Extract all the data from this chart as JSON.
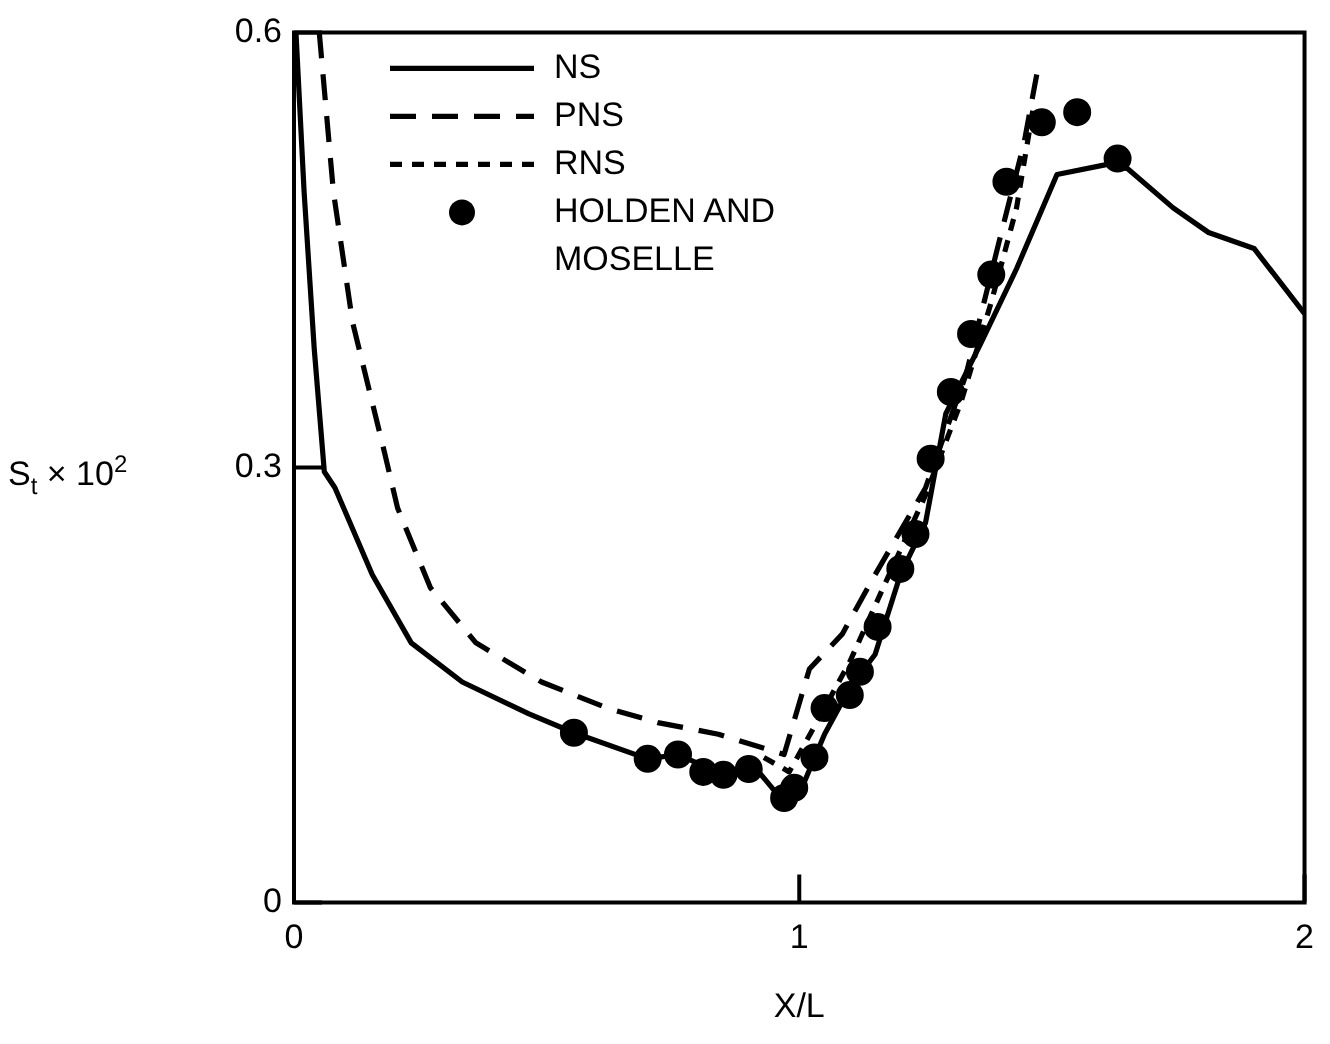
{
  "chart_data": {
    "type": "line",
    "xlabel": "X/L",
    "ylabel": "S$_{t}$ × 10$^{2}$",
    "xlim": [
      0,
      2
    ],
    "ylim": [
      0,
      0.6
    ],
    "xticks": [
      0,
      1,
      2
    ],
    "yticks": [
      0,
      0.3,
      0.6
    ],
    "grid": false,
    "legend": "top",
    "series": [
      {
        "name": "NS",
        "color": "#000000",
        "type": "line",
        "line_style": "solid",
        "marker": "none",
        "x": [
          0.004,
          0.02,
          0.04,
          0.06,
          0.081,
          0.155,
          0.232,
          0.333,
          0.465,
          0.554,
          0.7,
          0.76,
          0.85,
          0.915,
          0.97,
          1.01,
          1.05,
          1.1,
          1.15,
          1.2,
          1.25,
          1.29,
          1.36,
          1.43,
          1.51,
          1.61,
          1.65,
          1.74,
          1.81,
          1.9,
          2.0
        ],
        "values": [
          0.599,
          0.49,
          0.382,
          0.297,
          0.286,
          0.226,
          0.179,
          0.152,
          0.13,
          0.117,
          0.099,
          0.102,
          0.088,
          0.092,
          0.069,
          0.083,
          0.116,
          0.148,
          0.171,
          0.226,
          0.262,
          0.337,
          0.386,
          0.437,
          0.502,
          0.509,
          0.506,
          0.479,
          0.462,
          0.451,
          0.406
        ]
      },
      {
        "name": "PNS",
        "color": "#000000",
        "type": "line",
        "line_style": "dashed",
        "marker": "none",
        "x": [
          0.05,
          0.078,
          0.116,
          0.18,
          0.205,
          0.27,
          0.36,
          0.49,
          0.62,
          0.72,
          0.84,
          0.97,
          1.02,
          1.085,
          1.15,
          1.25,
          1.33,
          1.395,
          1.445,
          1.47
        ],
        "values": [
          0.6,
          0.49,
          0.4,
          0.309,
          0.272,
          0.217,
          0.179,
          0.152,
          0.134,
          0.124,
          0.116,
          0.102,
          0.161,
          0.185,
          0.226,
          0.286,
          0.364,
          0.455,
          0.524,
          0.571
        ]
      },
      {
        "name": "RNS",
        "color": "#000000",
        "type": "line",
        "line_style": "dotted",
        "marker": "none",
        "x": [
          0.93,
          0.98,
          1.05,
          1.1,
          1.17,
          1.25,
          1.32,
          1.38,
          1.43,
          1.465
        ],
        "values": [
          0.1,
          0.09,
          0.134,
          0.166,
          0.22,
          0.281,
          0.345,
          0.414,
          0.479,
          0.552
        ]
      },
      {
        "name": "HOLDEN AND MOSELLE",
        "color": "#000000",
        "type": "scatter",
        "marker": "circle",
        "x": [
          0.554,
          0.7,
          0.76,
          0.81,
          0.85,
          0.9,
          0.97,
          0.99,
          1.03,
          1.05,
          1.1,
          1.12,
          1.155,
          1.2,
          1.23,
          1.26,
          1.3,
          1.34,
          1.38,
          1.41,
          1.48,
          1.55,
          1.63
        ],
        "values": [
          0.117,
          0.099,
          0.102,
          0.09,
          0.088,
          0.092,
          0.072,
          0.079,
          0.1,
          0.134,
          0.143,
          0.159,
          0.19,
          0.23,
          0.254,
          0.306,
          0.352,
          0.392,
          0.433,
          0.497,
          0.538,
          0.545,
          0.513
        ]
      }
    ]
  }
}
